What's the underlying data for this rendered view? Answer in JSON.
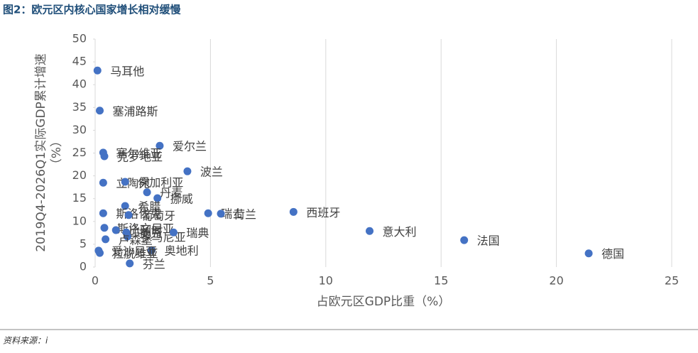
{
  "chart_data": {
    "type": "scatter",
    "title": "图2：欧元区内核心国家增长相对缓慢",
    "x_label": "占欧元区GDP比重（%）",
    "y_label": [
      "2019Q4-2026Q1实际GDP累计增速",
      "（%）"
    ],
    "source": "资料来源：i",
    "color": "#4472c4",
    "point_labels": [
      "马耳他",
      "塞浦路斯",
      "爱尔兰",
      "塞尔维亚",
      "克罗地亚",
      "波兰",
      "立陶宛",
      "保加利亚",
      "丹麦",
      "挪威",
      "希腊",
      "斯洛伐克",
      "葡萄牙",
      "瑞士",
      "荷兰",
      "西班牙",
      "斯洛文尼亚",
      "比利时",
      "捷克",
      "罗马尼亚",
      "瑞典",
      "卢森堡",
      "意大利",
      "法国",
      "德国",
      "奥地利",
      "爱沙尼亚",
      "拉脱维亚",
      "芬兰"
    ],
    "x": [
      0.1,
      0.2,
      2.8,
      0.35,
      0.4,
      4.0,
      0.35,
      1.3,
      2.25,
      2.7,
      1.3,
      0.35,
      1.45,
      4.9,
      5.45,
      8.6,
      0.4,
      0.9,
      1.35,
      1.4,
      3.4,
      0.45,
      11.9,
      16.0,
      21.4,
      2.45,
      0.15,
      0.2,
      1.5
    ],
    "values": [
      43.1,
      34.3,
      26.6,
      25.1,
      24.3,
      21.0,
      18.5,
      18.7,
      16.4,
      15.1,
      13.4,
      11.8,
      11.4,
      11.8,
      11.7,
      12.1,
      8.6,
      8.1,
      7.6,
      6.7,
      7.6,
      6.1,
      7.9,
      5.9,
      3.0,
      3.7,
      3.6,
      3.1,
      0.8
    ],
    "xlim": [
      0,
      25
    ],
    "xticks": [
      0,
      5,
      10,
      15,
      20,
      25
    ],
    "ylim": [
      0,
      50
    ],
    "yticks": [
      0,
      5,
      10,
      15,
      20,
      25,
      30,
      35,
      40,
      45,
      50
    ],
    "grid": true
  }
}
